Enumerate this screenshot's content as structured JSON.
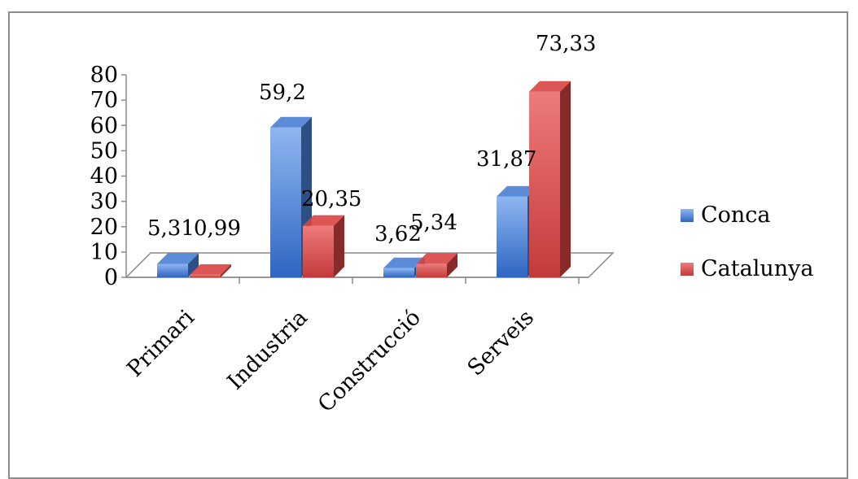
{
  "chart_data": {
    "type": "bar",
    "categories": [
      "Primari",
      "Industria",
      "Construcció",
      "Serveis"
    ],
    "series": [
      {
        "name": "Conca",
        "values": [
          5.31,
          59.2,
          3.62,
          31.87
        ],
        "labels": [
          "5,31",
          "59,2",
          "3,62",
          "31,87"
        ],
        "color": "#4a7fd4"
      },
      {
        "name": "Catalunya",
        "values": [
          0.99,
          20.35,
          5.34,
          73.33
        ],
        "labels": [
          "0,99",
          "20,35",
          "5,34",
          "73,33"
        ],
        "color": "#d94444"
      }
    ],
    "yticks": [
      "0",
      "10",
      "20",
      "30",
      "40",
      "50",
      "60",
      "70",
      "80"
    ],
    "ylim": [
      0,
      80
    ],
    "grid": false,
    "legend_position": "right",
    "style": "3d-column"
  }
}
